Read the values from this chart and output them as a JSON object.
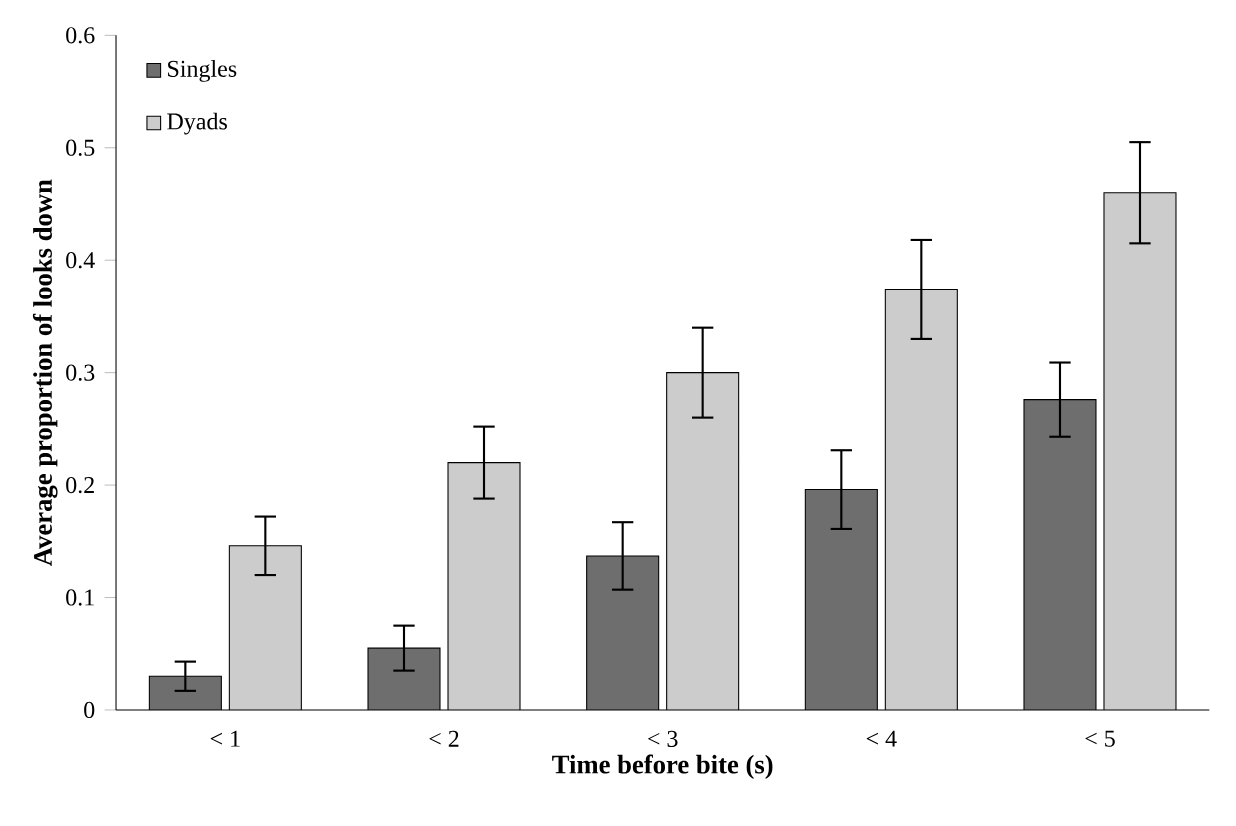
{
  "chart_data": {
    "type": "bar",
    "xlabel": "Time before bite (s)",
    "ylabel": "Average proportion of looks down",
    "categories": [
      "< 1",
      "< 2",
      "< 3",
      "< 4",
      "< 5"
    ],
    "series": [
      {
        "name": "Singles",
        "color": "#6e6e6e",
        "values": [
          0.03,
          0.055,
          0.137,
          0.196,
          0.276
        ],
        "errors": [
          0.013,
          0.02,
          0.03,
          0.035,
          0.033
        ]
      },
      {
        "name": "Dyads",
        "color": "#cccccc",
        "values": [
          0.146,
          0.22,
          0.3,
          0.374,
          0.46
        ],
        "errors": [
          0.026,
          0.032,
          0.04,
          0.044,
          0.045
        ]
      }
    ],
    "ylim": [
      0,
      0.6
    ],
    "yticks": [
      0,
      0.1,
      0.2,
      0.3,
      0.4,
      0.5,
      0.6
    ],
    "grid": false,
    "legend": "top left"
  }
}
